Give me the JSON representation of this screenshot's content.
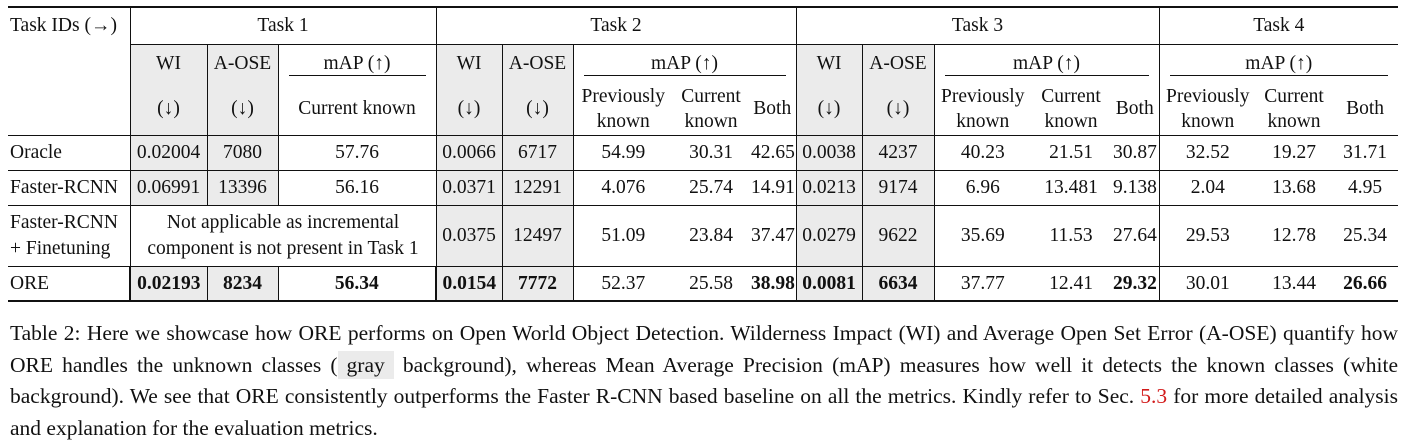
{
  "table": {
    "corner_label": "Task IDs (→)",
    "tasks": [
      "Task 1",
      "Task 2",
      "Task 3",
      "Task 4"
    ],
    "metric_wi": "WI",
    "metric_aose": "A-OSE",
    "metric_map": "mAP (↑)",
    "arrow_down": "(↓)",
    "sub_current": "Current known",
    "sub_previous": "Previously known",
    "sub_both": "Both",
    "rows": [
      {
        "label": "Oracle",
        "t1": {
          "wi": "0.02004",
          "aose": "7080",
          "cur": "57.76"
        },
        "t2": {
          "wi": "0.0066",
          "aose": "6717",
          "prev": "54.99",
          "cur": "30.31",
          "both": "42.65"
        },
        "t3": {
          "wi": "0.0038",
          "aose": "4237",
          "prev": "40.23",
          "cur": "21.51",
          "both": "30.87"
        },
        "t4": {
          "prev": "32.52",
          "cur": "19.27",
          "both": "31.71"
        }
      },
      {
        "label": "Faster-RCNN",
        "t1": {
          "wi": "0.06991",
          "aose": "13396",
          "cur": "56.16"
        },
        "t2": {
          "wi": "0.0371",
          "aose": "12291",
          "prev": "4.076",
          "cur": "25.74",
          "both": "14.91"
        },
        "t3": {
          "wi": "0.0213",
          "aose": "9174",
          "prev": "6.96",
          "cur": "13.481",
          "both": "9.138"
        },
        "t4": {
          "prev": "2.04",
          "cur": "13.68",
          "both": "4.95"
        }
      },
      {
        "label_line1": "Faster-RCNN",
        "label_line2": "+ Finetuning",
        "na_line1": "Not applicable as incremental",
        "na_line2": "component is not present in Task 1",
        "t2": {
          "wi": "0.0375",
          "aose": "12497",
          "prev": "51.09",
          "cur": "23.84",
          "both": "37.47"
        },
        "t3": {
          "wi": "0.0279",
          "aose": "9622",
          "prev": "35.69",
          "cur": "11.53",
          "both": "27.64"
        },
        "t4": {
          "prev": "29.53",
          "cur": "12.78",
          "both": "25.34"
        }
      },
      {
        "label": "ORE",
        "t1": {
          "wi": "0.02193",
          "aose": "8234",
          "cur": "56.34"
        },
        "t2": {
          "wi": "0.0154",
          "aose": "7772",
          "prev": "52.37",
          "cur": "25.58",
          "both": "38.98"
        },
        "t3": {
          "wi": "0.0081",
          "aose": "6634",
          "prev": "37.77",
          "cur": "12.41",
          "both": "29.32"
        },
        "t4": {
          "prev": "30.01",
          "cur": "13.44",
          "both": "26.66"
        }
      }
    ]
  },
  "caption": {
    "p1": "Table 2: Here we showcase how ORE performs on Open World Object Detection. Wilderness Impact (WI) and Average Open Set Error (A-OSE) quantify how ORE handles the unknown classes (",
    "gray_word": "gray",
    "p2": " background), whereas Mean Average Precision (mAP) measures how well it detects the known classes (white background). We see that ORE consistently outperforms the Faster R-CNN based baseline on all the metrics. Kindly refer to Sec. ",
    "ref": "5.3",
    "p3": " for more detailed analysis and explanation for the evaluation metrics."
  },
  "colors": {
    "unknown_bg": "#ebebeb",
    "ref_link": "#d21a1a"
  }
}
